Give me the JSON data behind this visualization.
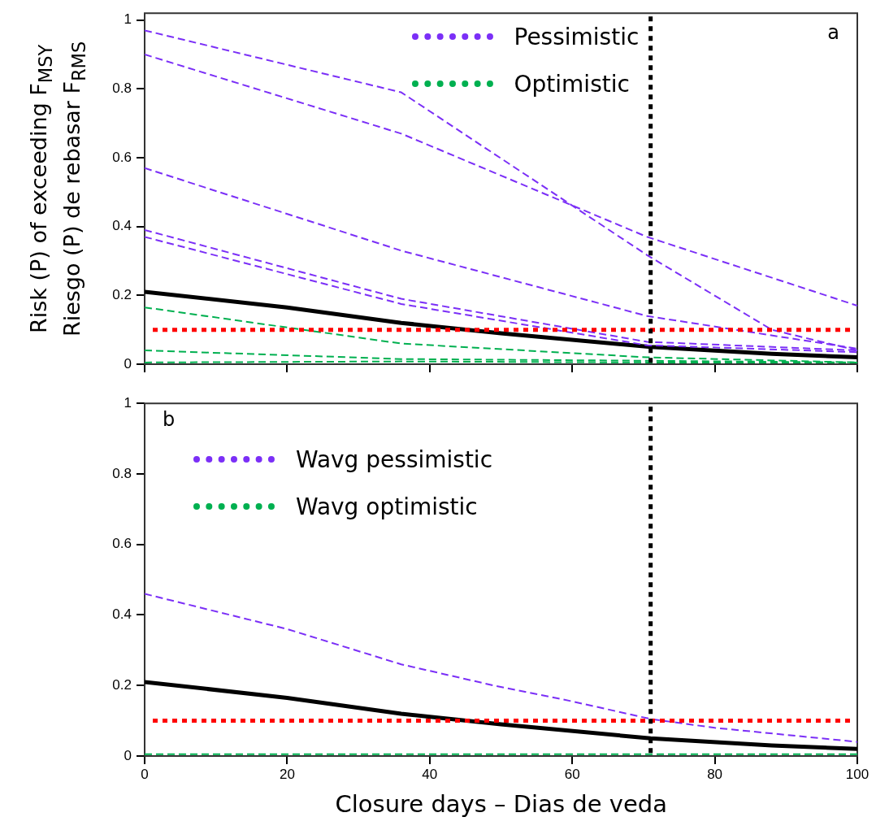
{
  "chart_data": [
    {
      "type": "line",
      "ylabel": "Risk (P) of exceeding F$_{MSY}$\nRiesgo (P) de rebasar F$_{RMS}$",
      "annotations": [
        "a"
      ],
      "legend": "top",
      "tick_labels": "y",
      "line_style": "dashed",
      "xlim": [
        0,
        100
      ],
      "xticks": [
        0,
        20,
        40,
        60,
        80,
        100
      ],
      "ylim": [
        0,
        1.02
      ],
      "yticks": [
        0,
        0.2,
        0.4,
        0.6,
        0.8,
        1
      ],
      "series": [
        {
          "name": "Pessimistic",
          "color": "#7b2ff7",
          "x": [
            0,
            36,
            70.5,
            88,
            100
          ],
          "values": [
            0.97,
            0.79,
            0.317,
            0.1,
            0.04
          ]
        },
        {
          "color": "#7b2ff7",
          "x": [
            0,
            36,
            70.5,
            100
          ],
          "values": [
            0.9,
            0.67,
            0.37,
            0.17
          ]
        },
        {
          "color": "#7b2ff7",
          "x": [
            0,
            36,
            70.5,
            100
          ],
          "values": [
            0.57,
            0.33,
            0.14,
            0.045
          ]
        },
        {
          "color": "#7b2ff7",
          "x": [
            0,
            36,
            70.5,
            100
          ],
          "values": [
            0.39,
            0.19,
            0.065,
            0.04
          ]
        },
        {
          "color": "#7b2ff7",
          "x": [
            0,
            36,
            70.5,
            100
          ],
          "values": [
            0.37,
            0.175,
            0.055,
            0.035
          ]
        },
        {
          "name": "Optimistic",
          "color": "#00b050",
          "x": [
            0,
            36,
            70.5,
            100
          ],
          "values": [
            0.165,
            0.06,
            0.02,
            0.005
          ]
        },
        {
          "color": "#00b050",
          "x": [
            0,
            36,
            70.5,
            100
          ],
          "values": [
            0.04,
            0.015,
            0.01,
            0.005
          ]
        },
        {
          "color": "#00b050",
          "x": [
            0,
            36,
            70.5,
            100
          ],
          "values": [
            0.005,
            0.008,
            0.005,
            0.005
          ]
        },
        {
          "color": "#000000",
          "line_style": "solid",
          "x": [
            0,
            20,
            36,
            50,
            71,
            88,
            100
          ],
          "values": [
            0.21,
            0.165,
            0.12,
            0.09,
            0.05,
            0.03,
            0.02
          ]
        }
      ],
      "ref_lines": [
        {
          "axis": "y",
          "value": 0.1,
          "color": "#ff0000",
          "line_style": "dotted"
        },
        {
          "axis": "x",
          "value": 71,
          "color": "#000000",
          "line_style": "dotted"
        }
      ]
    },
    {
      "type": "line",
      "xlabel": "Closure days – Dias de veda",
      "annotations": [
        "b"
      ],
      "legend": "top left",
      "line_style": "dashed",
      "xlim": [
        0,
        100
      ],
      "xticks": [
        0,
        20,
        40,
        60,
        80,
        100
      ],
      "ylim": [
        0,
        1
      ],
      "yticks": [
        0,
        0.2,
        0.4,
        0.6,
        0.8,
        1
      ],
      "series": [
        {
          "name": "Wavg pessimistic",
          "color": "#7b2ff7",
          "x": [
            0,
            20,
            36,
            49,
            60,
            71,
            80,
            100
          ],
          "values": [
            0.46,
            0.36,
            0.26,
            0.2,
            0.155,
            0.105,
            0.08,
            0.04
          ]
        },
        {
          "name": "Wavg optimistic",
          "color": "#00b050",
          "x": [
            0,
            100
          ],
          "values": [
            0.005,
            0.005
          ]
        },
        {
          "color": "#000000",
          "line_style": "solid",
          "x": [
            0,
            20,
            36,
            50,
            71,
            88,
            100
          ],
          "values": [
            0.21,
            0.165,
            0.12,
            0.09,
            0.05,
            0.03,
            0.02
          ]
        }
      ],
      "ref_lines": [
        {
          "axis": "y",
          "value": 0.1,
          "color": "#ff0000",
          "line_style": "dotted"
        },
        {
          "axis": "x",
          "value": 71,
          "color": "#000000",
          "line_style": "dotted"
        }
      ]
    }
  ]
}
